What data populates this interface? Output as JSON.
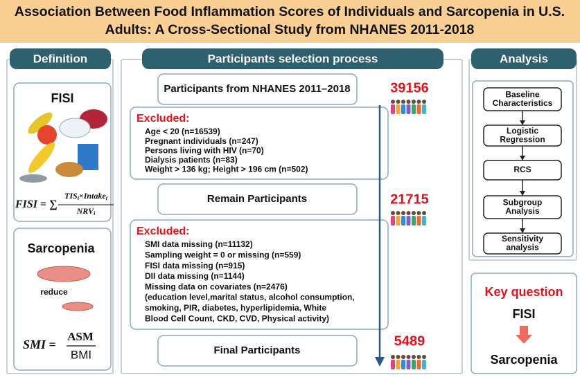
{
  "title": [
    "Association Between Food Inflammation Scores of Individuals and Sarcopenia in U.S.",
    "Adults: A Cross-Sectional Study from NHANES 2011-2018"
  ],
  "definition": {
    "header": "Definition",
    "fisi": {
      "label": "FISI",
      "formula": {
        "lhs": "FISI",
        "op": " = ∑ ",
        "numerator": [
          "TIS",
          "i",
          "×Intake",
          "i"
        ],
        "denominator": [
          "NRV",
          "i"
        ]
      }
    },
    "sarcopenia": {
      "label": "Sarcopenia",
      "note": "reduce",
      "formula": {
        "lhs": "SMI",
        "op": " = ",
        "numerator": "ASM",
        "denominator": "BMI"
      }
    }
  },
  "selection": {
    "header": "Participants selection process",
    "start": {
      "label": "Participants from NHANES 2011–2018",
      "count": 39156
    },
    "excluded_1": {
      "title": "Excluded:",
      "items": [
        "Age < 20 (n=16539)",
        "Pregnant individuals (n=247)",
        "Persons living with HIV (n=70)",
        "Dialysis patients (n=83)",
        "Weight > 136 kg; Height > 196 cm (n=502)"
      ]
    },
    "remain": {
      "label": "Remain Participants",
      "count": 21715
    },
    "excluded_2": {
      "title": "Excluded:",
      "items": [
        "SMI data missing (n=11132)",
        "Sampling weight = 0 or missing (n=559)",
        "FISI data missing (n=915)",
        "DII data missing (n=1144)",
        "Missing data on covariates (n=2476)",
        " (education level,marital status, alcohol consumption,",
        "smoking, PIR, diabetes,     hyperlipidemia, White",
        "Blood Cell Count, CKD, CVD, Physical activity)"
      ]
    },
    "final": {
      "label": "Final Participants",
      "count": 5489
    }
  },
  "analysis": {
    "header": "Analysis",
    "steps": [
      [
        "Baseline",
        "Characteristics"
      ],
      [
        "Logistic",
        "Regression"
      ],
      [
        "RCS"
      ],
      [
        "Subgroup",
        "Analysis"
      ],
      [
        "Sensitivity",
        "analysis"
      ]
    ],
    "key_question": {
      "title": "Key question",
      "exposure": "FISI",
      "outcome": "Sarcopenia"
    }
  }
}
